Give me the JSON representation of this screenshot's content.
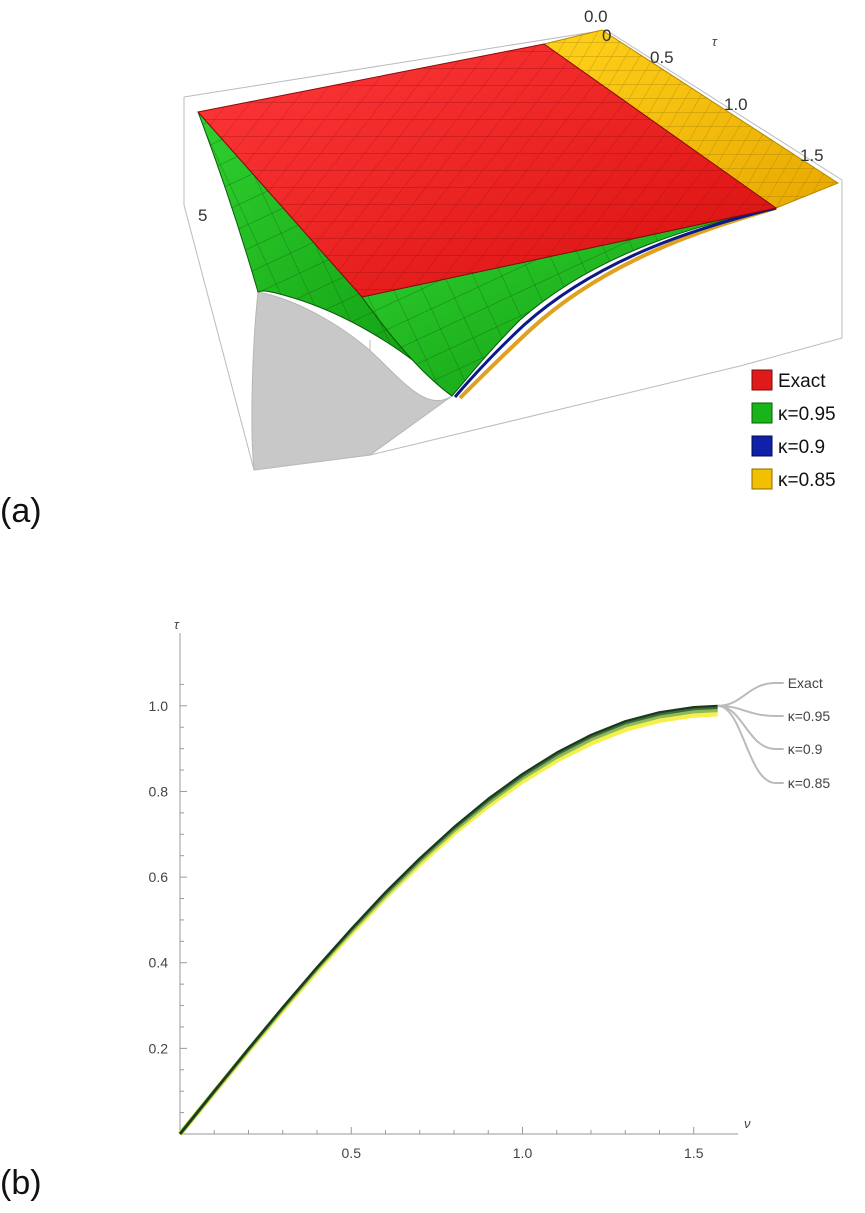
{
  "panels": {
    "a": {
      "label": "(a)"
    },
    "b": {
      "label": "(b)"
    }
  },
  "chart_data": [
    {
      "type": "surface",
      "axes": {
        "tau_axis": {
          "label": "τ",
          "ticks": [
            "0.0",
            "0.5",
            "1.0",
            "1.5"
          ]
        },
        "second_axis": {
          "ticks": [
            "0"
          ]
        },
        "vertical_axis": {
          "ticks": [
            "5"
          ]
        }
      },
      "series": [
        {
          "name": "Exact",
          "color": "#e01a1a"
        },
        {
          "name": "κ=0.95",
          "color": "#19b419"
        },
        {
          "name": "κ=0.9",
          "color": "#1020a8"
        },
        {
          "name": "κ=0.85",
          "color": "#f2c000"
        }
      ],
      "legend": "bottom-right"
    },
    {
      "type": "line",
      "xlabel": "ν",
      "ylabel": "τ",
      "xlim": [
        0,
        1.5708
      ],
      "ylim": [
        0,
        1.1
      ],
      "xticks": [
        0.5,
        1.0,
        1.5
      ],
      "xtick_labels": [
        "0.5",
        "1.0",
        "1.5"
      ],
      "yticks": [
        0.2,
        0.4,
        0.6,
        0.8,
        1.0
      ],
      "ytick_labels": [
        "0.2",
        "0.4",
        "0.6",
        "0.8",
        "1.0"
      ],
      "x": [
        0,
        0.1,
        0.2,
        0.3,
        0.4,
        0.5,
        0.6,
        0.7,
        0.8,
        0.9,
        1.0,
        1.1,
        1.2,
        1.3,
        1.4,
        1.5,
        1.57
      ],
      "series": [
        {
          "name": "Exact",
          "color": "#1a3a1a",
          "values": [
            0,
            0.1,
            0.199,
            0.296,
            0.389,
            0.479,
            0.565,
            0.644,
            0.717,
            0.783,
            0.841,
            0.891,
            0.932,
            0.964,
            0.985,
            0.997,
            1.0
          ]
        },
        {
          "name": "κ=0.95",
          "color": "#3d6b3d",
          "values": [
            0,
            0.1,
            0.198,
            0.295,
            0.388,
            0.477,
            0.562,
            0.641,
            0.714,
            0.779,
            0.837,
            0.887,
            0.928,
            0.96,
            0.981,
            0.993,
            0.996
          ]
        },
        {
          "name": "κ=0.9",
          "color": "#8fb85a",
          "values": [
            0,
            0.099,
            0.197,
            0.293,
            0.386,
            0.474,
            0.558,
            0.637,
            0.709,
            0.774,
            0.832,
            0.881,
            0.922,
            0.954,
            0.975,
            0.987,
            0.99
          ]
        },
        {
          "name": "κ=0.85",
          "color": "#f5f04a",
          "values": [
            0,
            0.098,
            0.195,
            0.29,
            0.382,
            0.47,
            0.553,
            0.631,
            0.703,
            0.767,
            0.824,
            0.873,
            0.913,
            0.945,
            0.966,
            0.978,
            0.981
          ]
        }
      ],
      "legend": "right, callout labels"
    }
  ]
}
